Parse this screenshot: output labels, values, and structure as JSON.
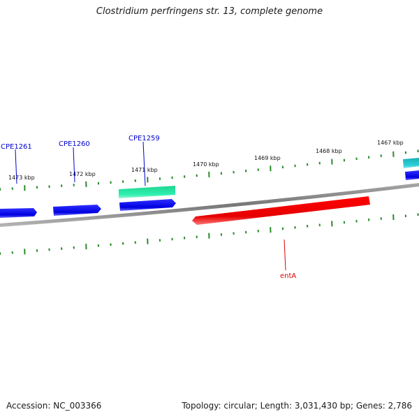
{
  "title": "Clostridium perfringens str. 13, complete genome",
  "footer": {
    "accession": "Accession: NC_003366",
    "summary": "Topology: circular; Length: 3,031,430 bp; Genes: 2,786"
  },
  "scale_labels": [
    "1473 kbp",
    "1472 kbp",
    "1471 kbp",
    "1470 kbp",
    "1469 kbp",
    "1468 kbp",
    "1467 kbp"
  ],
  "genes": [
    {
      "label": "CPE1261",
      "color": "#0000cc"
    },
    {
      "label": "CPE1260",
      "color": "#0000cc"
    },
    {
      "label": "CPE1259",
      "color": "#0000cc"
    },
    {
      "label": "entA",
      "color": "#dd0000"
    }
  ],
  "colors": {
    "gene_forward": "#1010e8",
    "gene_rna": "#22e5a0",
    "gene_teal": "#22c8c8",
    "gene_reverse": "#ff1010",
    "tick": "#2a8a2a",
    "backbone": "#888888"
  }
}
